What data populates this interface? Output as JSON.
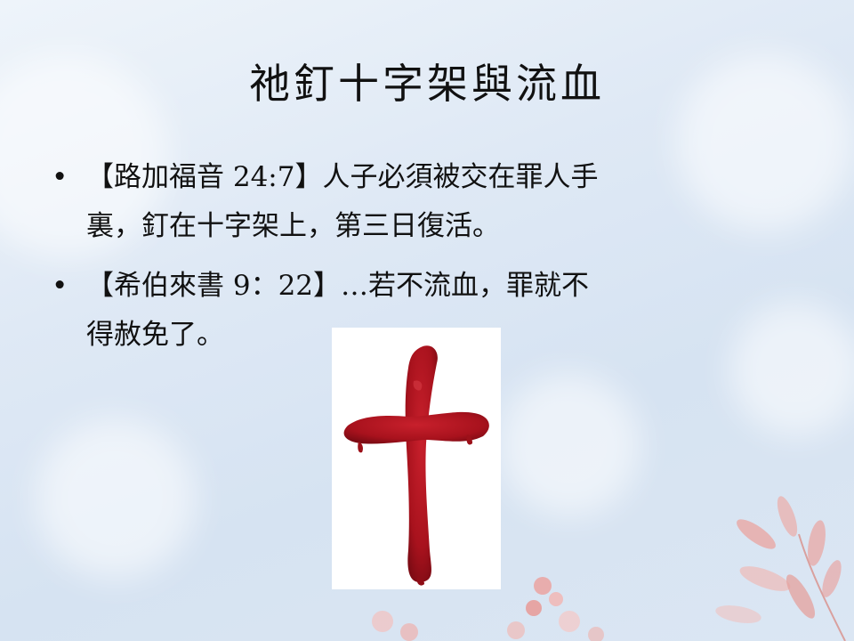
{
  "slide": {
    "title": "祂釘十字架與流血",
    "bullets": [
      {
        "marker": "•",
        "line1": "【路加福音 24:7】人子必須被交在罪人手",
        "line2": "裏，釘在十字架上，第三日復活。"
      },
      {
        "marker": "•",
        "line1": "【希伯來書 9：22】…若不流血，罪就不",
        "line2": "得赦免了。"
      }
    ]
  },
  "image": {
    "icon": "red-cross-icon",
    "color": "#b51622",
    "background": "#ffffff"
  },
  "theme": {
    "background_colors": [
      "#eef4fa",
      "#d6e3f2"
    ],
    "petal_color": "#e8a7a4"
  }
}
